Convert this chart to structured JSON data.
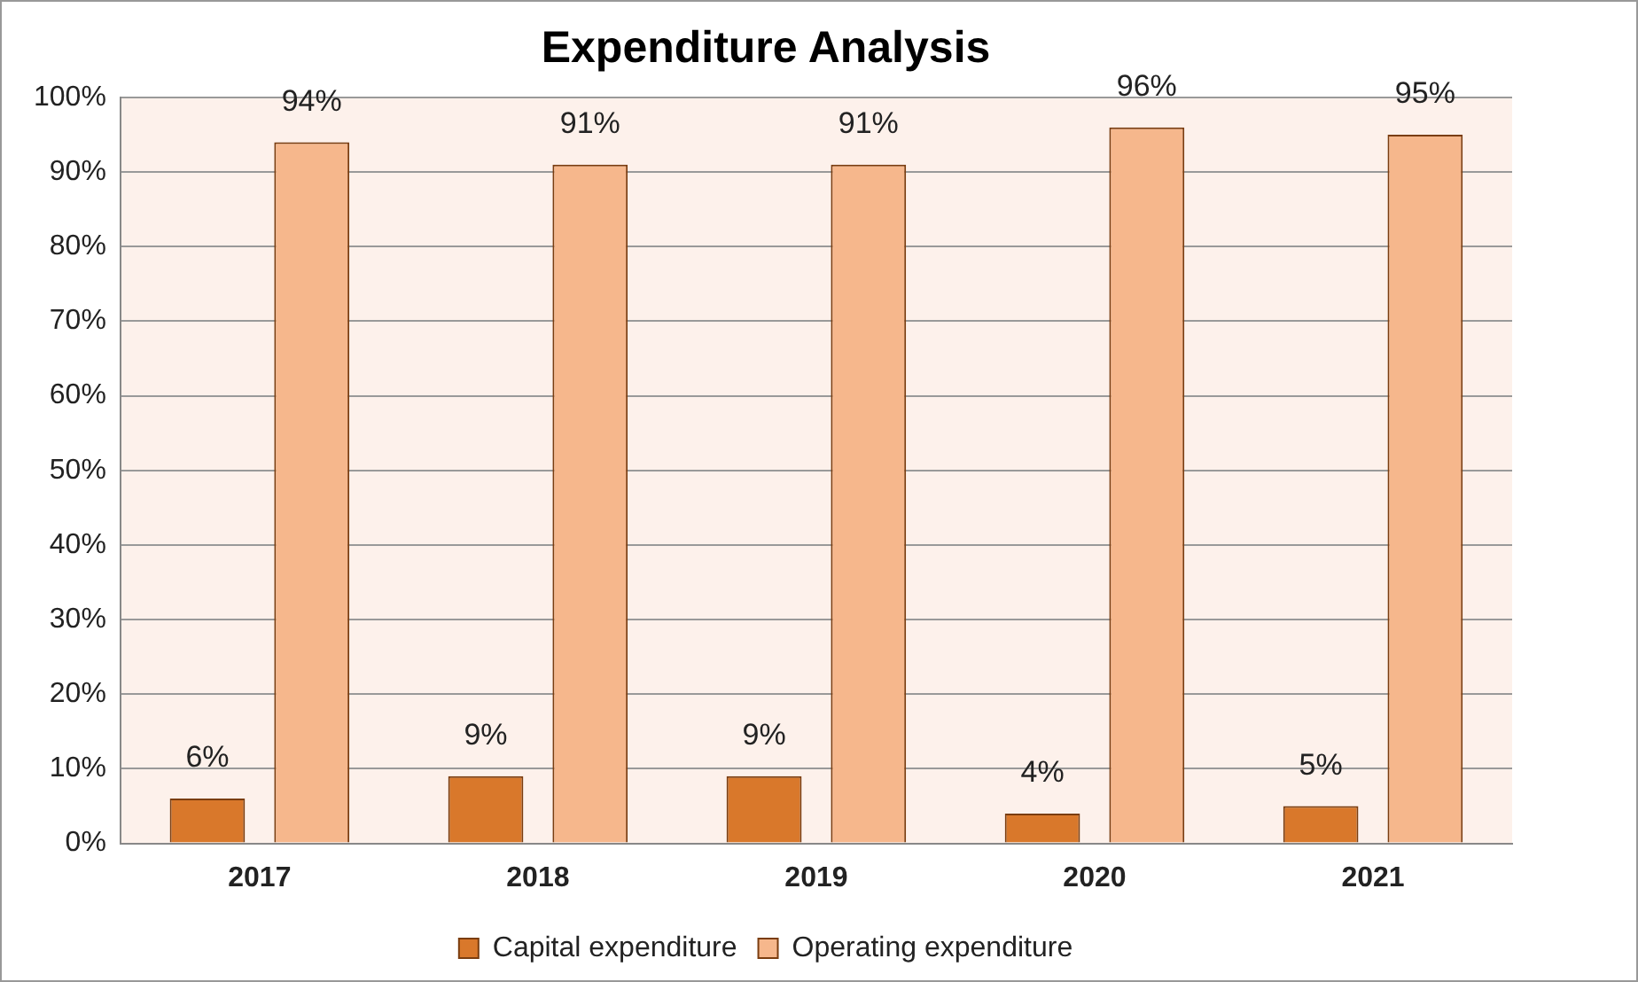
{
  "chart_data": {
    "type": "bar",
    "title": "Expenditure Analysis",
    "categories": [
      "2017",
      "2018",
      "2019",
      "2020",
      "2021"
    ],
    "series": [
      {
        "name": "Capital expenditure",
        "color": "#d9782b",
        "values": [
          6,
          9,
          9,
          4,
          5
        ],
        "value_labels": [
          "6%",
          "9%",
          "9%",
          "4%",
          "5%"
        ]
      },
      {
        "name": "Operating expenditure",
        "color": "#f6b78c",
        "values": [
          94,
          91,
          91,
          96,
          95
        ],
        "value_labels": [
          "94%",
          "91%",
          "91%",
          "96%",
          "95%"
        ]
      }
    ],
    "ylim": [
      0,
      100
    ],
    "yticks": [
      {
        "value": 0,
        "label": "0%"
      },
      {
        "value": 10,
        "label": "10%"
      },
      {
        "value": 20,
        "label": "20%"
      },
      {
        "value": 30,
        "label": "30%"
      },
      {
        "value": 40,
        "label": "40%"
      },
      {
        "value": 50,
        "label": "50%"
      },
      {
        "value": 60,
        "label": "60%"
      },
      {
        "value": 70,
        "label": "70%"
      },
      {
        "value": 80,
        "label": "80%"
      },
      {
        "value": 90,
        "label": "90%"
      },
      {
        "value": 100,
        "label": "100%"
      }
    ],
    "grid": "y",
    "legend": "bottom"
  }
}
